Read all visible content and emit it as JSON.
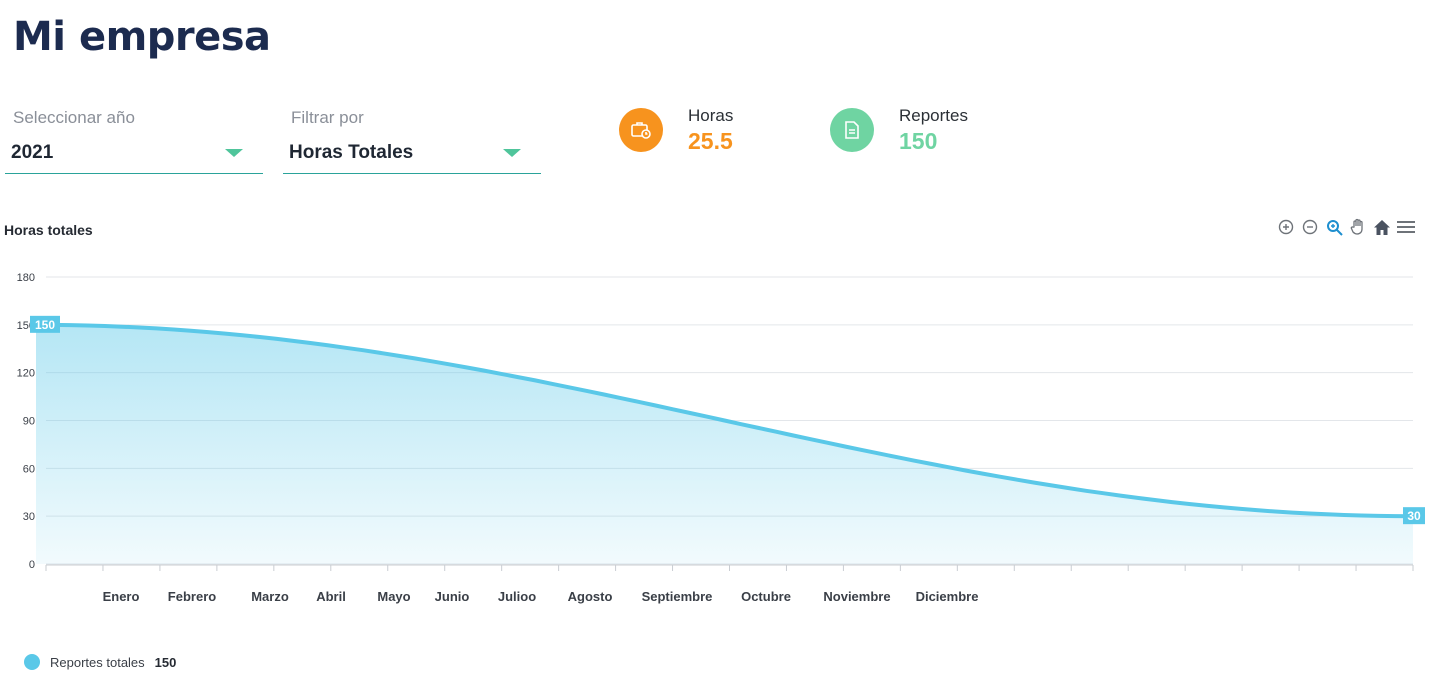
{
  "header": {
    "title": "Mi empresa"
  },
  "filters": {
    "year": {
      "label": "Seleccionar año",
      "value": "2021"
    },
    "filter_by": {
      "label": "Filtrar por",
      "value": "Horas Totales"
    }
  },
  "stats": {
    "horas": {
      "label": "Horas",
      "value": "25.5",
      "icon": "briefcase-clock-icon",
      "color": "#f7931e"
    },
    "reportes": {
      "label": "Reportes",
      "value": "150",
      "icon": "document-icon",
      "color": "#6fd4a2"
    }
  },
  "toolbar": {
    "icons": [
      "zoom-in-icon",
      "zoom-out-icon",
      "zoom-select-icon",
      "pan-hand-icon",
      "home-reset-icon",
      "menu-icon"
    ]
  },
  "chart_data": {
    "type": "area",
    "title": "Horas totales",
    "categories": [
      "Enero",
      "Febrero",
      "Marzo",
      "Abril",
      "Mayo",
      "Junio",
      "Julioo",
      "Agosto",
      "Septiembre",
      "Octubre",
      "Noviembre",
      "Diciembre"
    ],
    "series": [
      {
        "name": "Reportes totales",
        "start": 150,
        "end": 30,
        "color": "#5ac8e8"
      }
    ],
    "y_ticks": [
      0,
      30,
      60,
      90,
      120,
      150,
      180
    ],
    "ylim": [
      0,
      180
    ],
    "data_labels": [
      "150",
      "30"
    ],
    "grid": true,
    "legend": {
      "position": "bottom-left",
      "label": "Reportes totales",
      "value": "150"
    }
  }
}
